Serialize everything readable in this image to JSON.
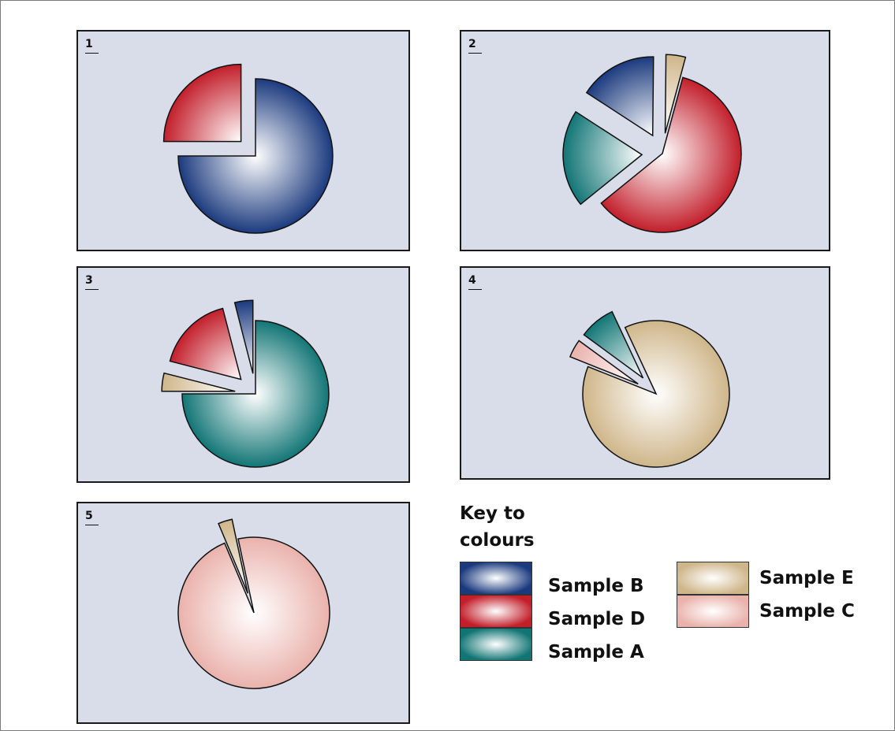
{
  "colors": {
    "Sample A": {
      "edge": "#127575",
      "center": "#ffffff"
    },
    "Sample B": {
      "edge": "#1b3a7e",
      "center": "#ffffff"
    },
    "Sample C": {
      "edge": "#eab2ac",
      "center": "#ffffff"
    },
    "Sample D": {
      "edge": "#c21f2b",
      "center": "#ffffff"
    },
    "Sample E": {
      "edge": "#cfb68a",
      "center": "#ffffff"
    }
  },
  "chart_data": [
    {
      "type": "pie",
      "panel_label": "1",
      "series": [
        {
          "name": "Sample B",
          "value": 75,
          "exploded": false
        },
        {
          "name": "Sample D",
          "value": 25,
          "exploded": true
        }
      ]
    },
    {
      "type": "pie",
      "panel_label": "2",
      "series": [
        {
          "name": "Sample D",
          "value": 60,
          "exploded": false
        },
        {
          "name": "Sample A",
          "value": 20,
          "exploded": true
        },
        {
          "name": "Sample B",
          "value": 16,
          "exploded": true
        },
        {
          "name": "Sample E",
          "value": 4,
          "exploded": true
        }
      ]
    },
    {
      "type": "pie",
      "panel_label": "3",
      "series": [
        {
          "name": "Sample A",
          "value": 75,
          "exploded": false
        },
        {
          "name": "Sample E",
          "value": 4,
          "exploded": true
        },
        {
          "name": "Sample D",
          "value": 17,
          "exploded": true
        },
        {
          "name": "Sample B",
          "value": 4,
          "exploded": true
        }
      ]
    },
    {
      "type": "pie",
      "panel_label": "4",
      "series": [
        {
          "name": "Sample E",
          "value": 88,
          "exploded": false
        },
        {
          "name": "Sample C",
          "value": 4,
          "exploded": true
        },
        {
          "name": "Sample A",
          "value": 8,
          "exploded": true
        }
      ]
    },
    {
      "type": "pie",
      "panel_label": "5",
      "series": [
        {
          "name": "Sample C",
          "value": 97,
          "exploded": false
        },
        {
          "name": "Sample E",
          "value": 3,
          "exploded": true
        }
      ]
    }
  ],
  "key": {
    "title_line1": "Key to",
    "title_line2": "colours",
    "items": [
      {
        "name": "Sample B",
        "label": "Sample B"
      },
      {
        "name": "Sample D",
        "label": "Sample D"
      },
      {
        "name": "Sample A",
        "label": "Sample A"
      },
      {
        "name": "Sample E",
        "label": "Sample E"
      },
      {
        "name": "Sample C",
        "label": "Sample C"
      }
    ]
  }
}
